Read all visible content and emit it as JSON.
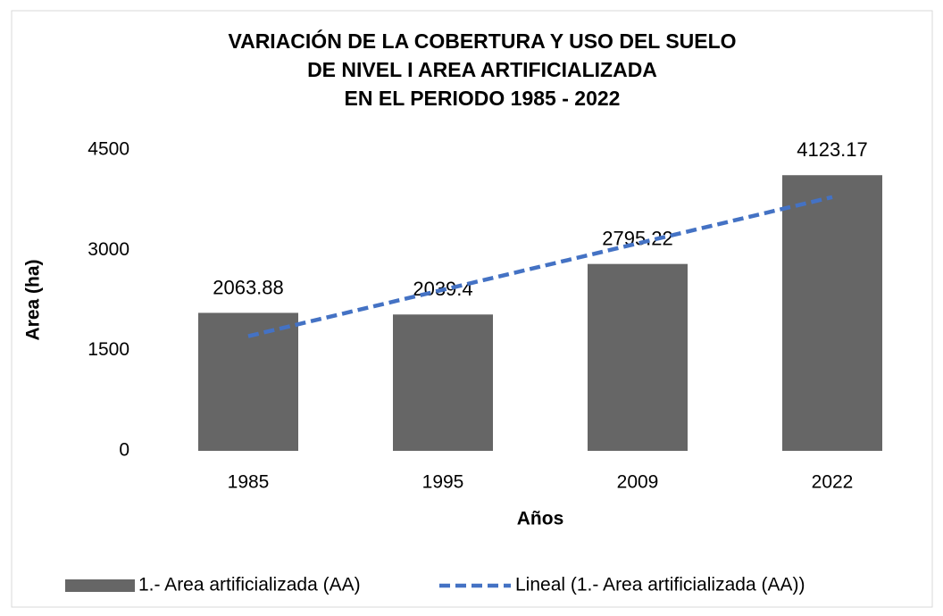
{
  "chart_data": {
    "type": "bar",
    "title": [
      "VARIACIÓN DE LA COBERTURA Y USO DEL SUELO",
      "DE NIVEL I AREA ARTIFICIALIZADA",
      "EN EL PERIODO 1985 - 2022"
    ],
    "categories": [
      "1985",
      "1995",
      "2009",
      "2022"
    ],
    "series": [
      {
        "name": "1.- Area artificializada (AA)",
        "color": "#666666",
        "values": [
          2063.88,
          2039.4,
          2795.22,
          4123.17
        ]
      }
    ],
    "trendline": {
      "name": "Lineal (1.- Area artificializada (AA))",
      "color": "#4472c4"
    },
    "xlabel": "Años",
    "ylabel": "Area (ha)",
    "ylim": [
      0,
      4500
    ],
    "yticks": [
      0,
      1500,
      3000,
      4500
    ],
    "grid": false,
    "legend": "bottom"
  }
}
